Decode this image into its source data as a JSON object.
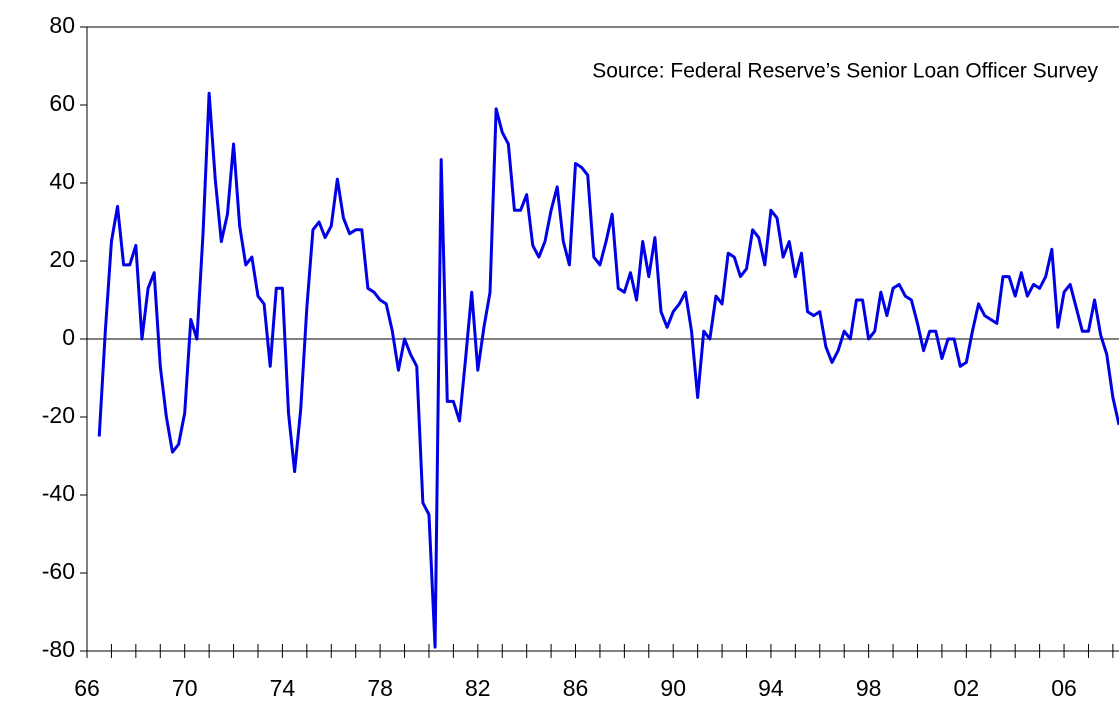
{
  "chart_data": {
    "type": "line",
    "annotation": "Source: Federal Reserve’s Senior Loan Officer Survey",
    "color": "#0000e6",
    "x": [
      1966.5,
      1966.75,
      1967,
      1967.25,
      1967.5,
      1967.75,
      1968,
      1968.25,
      1968.5,
      1968.75,
      1969,
      1969.25,
      1969.5,
      1969.75,
      1970,
      1970.25,
      1970.5,
      1970.75,
      1971,
      1971.25,
      1971.5,
      1971.75,
      1972,
      1972.25,
      1972.5,
      1972.75,
      1973,
      1973.25,
      1973.5,
      1973.75,
      1974,
      1974.25,
      1974.5,
      1974.75,
      1975,
      1975.25,
      1975.5,
      1975.75,
      1976,
      1976.25,
      1976.5,
      1976.75,
      1977,
      1977.25,
      1977.5,
      1977.75,
      1978,
      1978.25,
      1978.5,
      1978.75,
      1979,
      1979.25,
      1979.5,
      1979.75,
      1980,
      1980.25,
      1980.5,
      1980.75,
      1981,
      1981.25,
      1981.5,
      1981.75,
      1982,
      1982.25,
      1982.5,
      1982.75,
      1983,
      1983.25,
      1983.5,
      1983.75,
      1984,
      1984.25,
      1984.5,
      1984.75,
      1985,
      1985.25,
      1985.5,
      1985.75,
      1986,
      1986.25,
      1986.5,
      1986.75,
      1987,
      1987.25,
      1987.5,
      1987.75,
      1988,
      1988.25,
      1988.5,
      1988.75,
      1989,
      1989.25,
      1989.5,
      1989.75,
      1990,
      1990.25,
      1990.5,
      1990.75,
      1991,
      1991.25,
      1991.5,
      1991.75,
      1992,
      1992.25,
      1992.5,
      1992.75,
      1993,
      1993.25,
      1993.5,
      1993.75,
      1994,
      1994.25,
      1994.5,
      1994.75,
      1995,
      1995.25,
      1995.5,
      1995.75,
      1996,
      1996.25,
      1996.5,
      1996.75,
      1997,
      1997.25,
      1997.5,
      1997.75,
      1998,
      1998.25,
      1998.5,
      1998.75,
      1999,
      1999.25,
      1999.5,
      1999.75,
      2000,
      2000.25,
      2000.5,
      2000.75,
      2001,
      2001.25,
      2001.5,
      2001.75,
      2002,
      2002.25,
      2002.5,
      2002.75,
      2003,
      2003.25,
      2003.5,
      2003.75,
      2004,
      2004.25,
      2004.5,
      2004.75,
      2005,
      2005.25,
      2005.5,
      2005.75,
      2006,
      2006.25,
      2006.5,
      2006.75,
      2007,
      2007.25,
      2007.5,
      2007.75,
      2008,
      2008.25
    ],
    "values": [
      -25,
      2,
      25,
      34,
      19,
      19,
      24,
      0,
      13,
      17,
      -7,
      -20,
      -29,
      -27,
      -19,
      5,
      0,
      27,
      63,
      41,
      25,
      32,
      50,
      29,
      19,
      21,
      11,
      9,
      -7,
      13,
      13,
      -19,
      -34,
      -18,
      8,
      28,
      30,
      26,
      29,
      41,
      31,
      27,
      28,
      28,
      13,
      12,
      10,
      9,
      2,
      -8,
      0,
      -4,
      -7,
      -42,
      -45,
      -79,
      46,
      -16,
      -16,
      -21,
      -5,
      12,
      -8,
      3,
      12,
      59,
      53,
      50,
      33,
      33,
      37,
      24,
      21,
      25,
      33,
      39,
      25,
      19,
      45,
      44,
      42,
      21,
      19,
      25,
      32,
      13,
      12,
      17,
      10,
      25,
      16,
      26,
      7,
      3,
      7,
      9,
      12,
      2,
      -15,
      2,
      0,
      11,
      9,
      22,
      21,
      16,
      18,
      28,
      26,
      19,
      33,
      31,
      21,
      25,
      16,
      22,
      7,
      6,
      7,
      -2,
      -6,
      -3,
      2,
      0,
      10,
      10,
      0,
      2,
      12,
      6,
      13,
      14,
      11,
      10,
      4,
      -3,
      2,
      2,
      -5,
      0,
      0,
      -7,
      -6,
      2,
      9,
      6,
      5,
      4,
      16,
      16,
      11,
      17,
      11,
      14,
      13,
      16,
      23,
      3,
      12,
      14,
      8,
      2,
      2,
      10,
      1,
      -4,
      -15,
      -22
    ],
    "xlim": [
      1966,
      2008.25
    ],
    "ylim": [
      -80,
      80
    ],
    "yticks": [
      -80,
      -60,
      -40,
      -20,
      0,
      20,
      40,
      60,
      80
    ],
    "xticks": [
      {
        "value": 1966,
        "label": "66"
      },
      {
        "value": 1967,
        "label": null
      },
      {
        "value": 1968,
        "label": null
      },
      {
        "value": 1969,
        "label": null
      },
      {
        "value": 1970,
        "label": "70"
      },
      {
        "value": 1971,
        "label": null
      },
      {
        "value": 1972,
        "label": null
      },
      {
        "value": 1973,
        "label": null
      },
      {
        "value": 1974,
        "label": "74"
      },
      {
        "value": 1975,
        "label": null
      },
      {
        "value": 1976,
        "label": null
      },
      {
        "value": 1977,
        "label": null
      },
      {
        "value": 1978,
        "label": "78"
      },
      {
        "value": 1979,
        "label": null
      },
      {
        "value": 1980,
        "label": null
      },
      {
        "value": 1981,
        "label": null
      },
      {
        "value": 1982,
        "label": "82"
      },
      {
        "value": 1983,
        "label": null
      },
      {
        "value": 1984,
        "label": null
      },
      {
        "value": 1985,
        "label": null
      },
      {
        "value": 1986,
        "label": "86"
      },
      {
        "value": 1987,
        "label": null
      },
      {
        "value": 1988,
        "label": null
      },
      {
        "value": 1989,
        "label": null
      },
      {
        "value": 1990,
        "label": "90"
      },
      {
        "value": 1991,
        "label": null
      },
      {
        "value": 1992,
        "label": null
      },
      {
        "value": 1993,
        "label": null
      },
      {
        "value": 1994,
        "label": "94"
      },
      {
        "value": 1995,
        "label": null
      },
      {
        "value": 1996,
        "label": null
      },
      {
        "value": 1997,
        "label": null
      },
      {
        "value": 1998,
        "label": "98"
      },
      {
        "value": 1999,
        "label": null
      },
      {
        "value": 2000,
        "label": null
      },
      {
        "value": 2001,
        "label": null
      },
      {
        "value": 2002,
        "label": "02"
      },
      {
        "value": 2003,
        "label": null
      },
      {
        "value": 2004,
        "label": null
      },
      {
        "value": 2005,
        "label": null
      },
      {
        "value": 2006,
        "label": "06"
      },
      {
        "value": 2007,
        "label": null
      },
      {
        "value": 2008,
        "label": null
      }
    ]
  }
}
